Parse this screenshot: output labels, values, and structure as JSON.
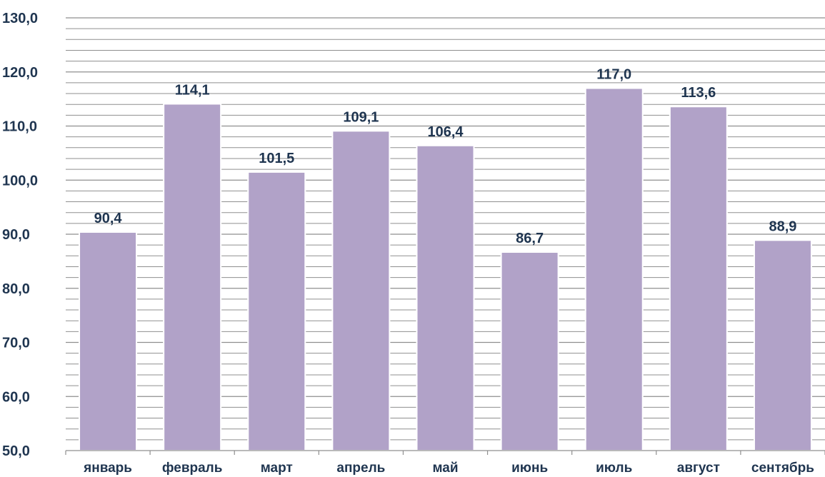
{
  "chart_data": {
    "type": "bar",
    "categories": [
      "январь",
      "февраль",
      "март",
      "апрель",
      "май",
      "июнь",
      "июль",
      "август",
      "сентябрь"
    ],
    "values": [
      90.4,
      114.1,
      101.5,
      109.1,
      106.4,
      86.7,
      117.0,
      113.6,
      88.9
    ],
    "value_labels": [
      "90,4",
      "114,1",
      "101,5",
      "109,1",
      "106,4",
      "86,7",
      "117,0",
      "113,6",
      "88,9"
    ],
    "ylim": [
      50,
      130
    ],
    "y_ticks": [
      50,
      60,
      70,
      80,
      90,
      100,
      110,
      120,
      130
    ],
    "y_tick_labels": [
      "50,0",
      "60,0",
      "70,0",
      "80,0",
      "90,0",
      "100,0",
      "110,0",
      "120,0",
      "130,0"
    ],
    "minor_gridline_step": 2,
    "grid": true,
    "legend": "none",
    "colors": {
      "bar": "#b1a2c8",
      "bar_edge": "#ffffff",
      "text": "#1f3550",
      "gridline": "#8f8f8f",
      "axis": "#8f8f8f"
    }
  }
}
